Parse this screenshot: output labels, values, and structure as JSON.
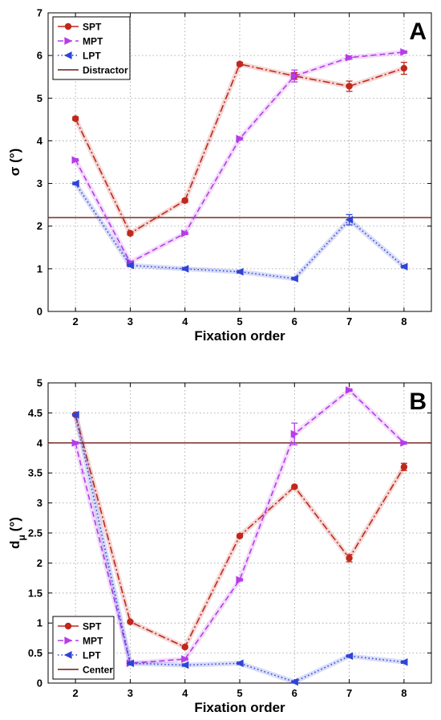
{
  "chart_data": [
    {
      "type": "line",
      "panel_label": "A",
      "xlabel": "Fixation order",
      "ylabel": "σ (°)",
      "x": [
        2,
        3,
        4,
        5,
        6,
        7,
        8
      ],
      "xlim": [
        1.5,
        8.5
      ],
      "ylim": [
        0,
        7
      ],
      "xticks": [
        2,
        3,
        4,
        5,
        6,
        7,
        8
      ],
      "yticks": [
        0,
        1,
        2,
        3,
        4,
        5,
        6,
        7
      ],
      "grid": true,
      "legend": "top-left",
      "series": [
        {
          "name": "SPT",
          "color": "#c0281c",
          "dash": "dashdot",
          "marker": "circle",
          "values": [
            4.52,
            1.83,
            2.6,
            5.8,
            5.52,
            5.28,
            5.7
          ],
          "errors": [
            0.04,
            0.04,
            0.04,
            0.04,
            0.08,
            0.12,
            0.14
          ]
        },
        {
          "name": "MPT",
          "color": "#b73bea",
          "dash": "dashed",
          "marker": "triangle-right",
          "values": [
            3.55,
            1.15,
            1.83,
            4.05,
            5.52,
            5.95,
            6.08
          ],
          "errors": [
            0.03,
            0.03,
            0.03,
            0.03,
            0.14,
            0.04,
            0.03
          ]
        },
        {
          "name": "LPT",
          "color": "#2f44d6",
          "dash": "dotted",
          "marker": "triangle-left",
          "values": [
            3.0,
            1.08,
            1.0,
            0.93,
            0.77,
            2.15,
            1.05
          ],
          "errors": [
            0.03,
            0.03,
            0.03,
            0.03,
            0.03,
            0.12,
            0.03
          ]
        }
      ],
      "reference": {
        "name": "Distractor",
        "value": 2.2,
        "color": "#6b1a14"
      }
    },
    {
      "type": "line",
      "panel_label": "B",
      "xlabel": "Fixation order",
      "ylabel": "d",
      "ylabel_sub": "μ",
      "ylabel_unit": "(°)",
      "x": [
        2,
        3,
        4,
        5,
        6,
        7,
        8
      ],
      "xlim": [
        1.5,
        8.5
      ],
      "ylim": [
        0,
        5
      ],
      "xticks": [
        2,
        3,
        4,
        5,
        6,
        7,
        8
      ],
      "yticks": [
        0,
        0.5,
        1,
        1.5,
        2,
        2.5,
        3,
        3.5,
        4,
        4.5,
        5
      ],
      "grid": true,
      "legend": "bottom-left",
      "series": [
        {
          "name": "SPT",
          "color": "#c0281c",
          "dash": "dashdot",
          "marker": "circle",
          "values": [
            4.47,
            1.02,
            0.6,
            2.45,
            3.27,
            2.08,
            3.6
          ],
          "errors": [
            0.02,
            0.02,
            0.02,
            0.02,
            0.02,
            0.06,
            0.06
          ]
        },
        {
          "name": "MPT",
          "color": "#b73bea",
          "dash": "dashed",
          "marker": "triangle-right",
          "values": [
            4.0,
            0.33,
            0.4,
            1.72,
            4.15,
            4.88,
            4.0
          ],
          "errors": [
            0.02,
            0.02,
            0.02,
            0.02,
            0.18,
            0.02,
            0.02
          ]
        },
        {
          "name": "LPT",
          "color": "#2f44d6",
          "dash": "dotted",
          "marker": "triangle-left",
          "values": [
            4.47,
            0.33,
            0.3,
            0.33,
            0.02,
            0.45,
            0.35
          ],
          "errors": [
            0.02,
            0.02,
            0.02,
            0.02,
            0.02,
            0.02,
            0.02
          ]
        }
      ],
      "reference": {
        "name": "Center",
        "value": 4.0,
        "color": "#6b1a14"
      }
    }
  ]
}
